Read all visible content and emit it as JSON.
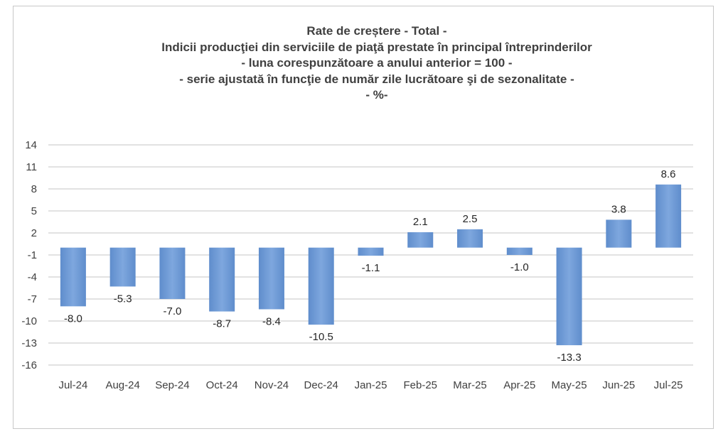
{
  "chart_data": {
    "type": "bar",
    "title_lines": [
      "Rate de creștere - Total -",
      "Indicii producţiei din serviciile de piaţă prestate în principal întreprinderilor",
      "- luna corespunzătoare a anului anterior = 100 -",
      "- serie ajustată în funcţie de număr zile lucrătoare şi de sezonalitate -",
      "- %-"
    ],
    "categories": [
      "Jul-24",
      "Aug-24",
      "Sep-24",
      "Oct-24",
      "Nov-24",
      "Dec-24",
      "Jan-25",
      "Feb-25",
      "Mar-25",
      "Apr-25",
      "May-25",
      "Jun-25",
      "Jul-25"
    ],
    "values": [
      -8.0,
      -5.3,
      -7.0,
      -8.7,
      -8.4,
      -10.5,
      -1.1,
      2.1,
      2.5,
      -1.0,
      -13.3,
      3.8,
      8.6
    ],
    "data_labels": [
      "-8.0",
      "-5.3",
      "-7.0",
      "-8.7",
      "-8.4",
      "-10.5",
      "-1.1",
      "2.1",
      "2.5",
      "-1.0",
      "-13.3",
      "3.8",
      "8.6"
    ],
    "yticks": [
      14,
      11,
      8,
      5,
      2,
      -1,
      -4,
      -7,
      -10,
      -13,
      -16
    ],
    "ylim": [
      -16,
      14
    ],
    "xlabel": "",
    "ylabel": "",
    "grid": true,
    "legend": "none",
    "bar_color": "#6f9bd6"
  }
}
